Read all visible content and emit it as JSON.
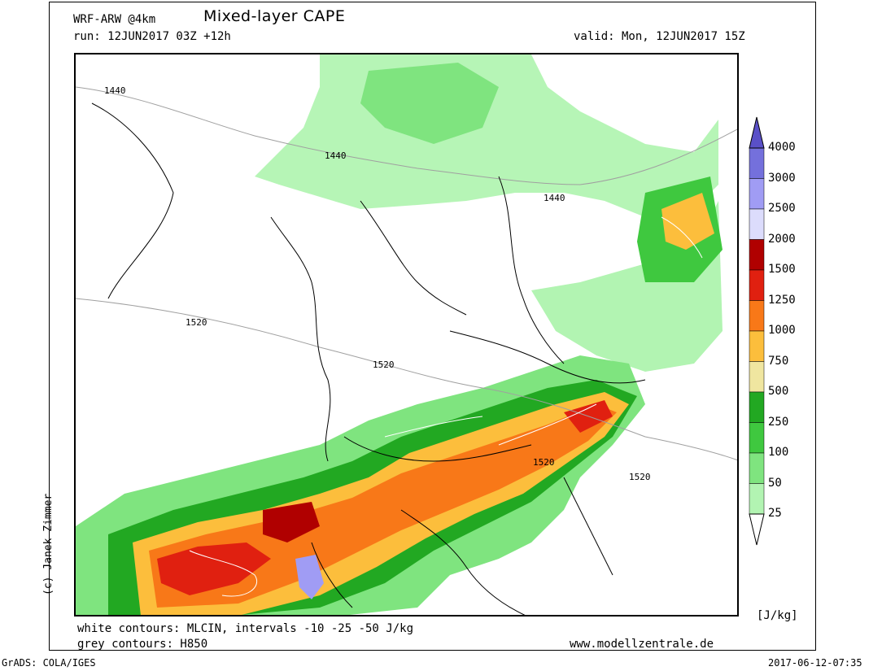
{
  "header": {
    "model": "WRF-ARW @4km",
    "title": "Mixed-layer CAPE",
    "run": "run: 12JUN2017 03Z +12h",
    "valid": "valid: Mon, 12JUN2017 15Z"
  },
  "footer": {
    "white_contours": "white contours: MLCIN, intervals -10 -25 -50 J/kg",
    "grey_contours": "grey contours: H850",
    "website": "www.modellzentrale.de",
    "credit": "(c) Janek Zimmer",
    "grads": "GrADS: COLA/IGES",
    "timestamp": "2017-06-12-07:35"
  },
  "legend": {
    "unit": "[J/kg]",
    "levels": [
      {
        "label": "25",
        "color": "#d9fcd9"
      },
      {
        "label": "50",
        "color": "#b2f4b2"
      },
      {
        "label": "100",
        "color": "#7fe47f"
      },
      {
        "label": "250",
        "color": "#3fc83f"
      },
      {
        "label": "500",
        "color": "#22a822"
      },
      {
        "label": "750",
        "color": "#f0e6a0"
      },
      {
        "label": "1000",
        "color": "#fcbe3c"
      },
      {
        "label": "1250",
        "color": "#f87818"
      },
      {
        "label": "1500",
        "color": "#e02010"
      },
      {
        "label": "2000",
        "color": "#b00000"
      },
      {
        "label": "2500",
        "color": "#dcdcfc"
      },
      {
        "label": "3000",
        "color": "#a09cf4"
      },
      {
        "label": "4000",
        "color": "#7470dc"
      }
    ],
    "top_arrow_color": "#5a50c8"
  },
  "map": {
    "contour_labels": [
      "1440",
      "1440",
      "1440",
      "1520",
      "1520",
      "1520",
      "1520"
    ]
  }
}
